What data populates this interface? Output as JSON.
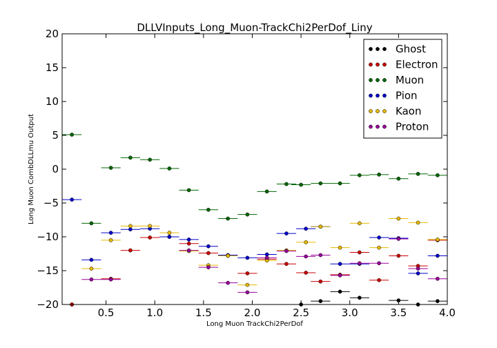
{
  "chart_data": {
    "type": "scatter",
    "title": "DLLVInputs_Long_Muon-TrackChi2PerDof_Liny",
    "xlabel": "Long Muon TrackChi2PerDof",
    "ylabel": "Long Muon CombDLLmu Output",
    "xlim": [
      0.05,
      4.0
    ],
    "ylim": [
      -20,
      20
    ],
    "xticks": [
      "0.5",
      "1.0",
      "1.5",
      "2.0",
      "2.5",
      "3.0",
      "3.5",
      "4.0"
    ],
    "xtick_values": [
      0.5,
      1.0,
      1.5,
      2.0,
      2.5,
      3.0,
      3.5,
      4.0
    ],
    "yticks": [
      "20",
      "15",
      "10",
      "5",
      "0",
      "−5",
      "−10",
      "−15",
      "−20"
    ],
    "ytick_values": [
      20,
      15,
      10,
      5,
      0,
      -5,
      -10,
      -15,
      -20
    ],
    "bin_half_width": 0.1,
    "legend_position": "upper right",
    "grid": false,
    "series": [
      {
        "name": "Ghost",
        "color": "#000000",
        "x": [
          0.15,
          2.5,
          2.7,
          2.9,
          3.1,
          3.5,
          3.7,
          3.9
        ],
        "y": [
          -20.0,
          -20.0,
          -19.5,
          -18.1,
          -19.0,
          -19.4,
          -20.0,
          -19.5
        ]
      },
      {
        "name": "Electron",
        "color": "#cc0000",
        "x": [
          0.15,
          0.55,
          0.75,
          0.95,
          1.15,
          1.35,
          1.55,
          1.75,
          1.95,
          2.15,
          2.35,
          2.55,
          2.7,
          2.9,
          3.1,
          3.3,
          3.5,
          3.7,
          3.9
        ],
        "y": [
          -20.0,
          -16.2,
          -12.0,
          -10.1,
          -10.0,
          -11.0,
          -12.4,
          -12.8,
          -15.4,
          -13.3,
          -14.0,
          -15.3,
          -16.6,
          -15.6,
          -12.3,
          -16.4,
          -12.8,
          -14.3,
          -10.5
        ]
      },
      {
        "name": "Muon",
        "color": "#006600",
        "x": [
          0.15,
          0.35,
          0.55,
          0.75,
          0.95,
          1.15,
          1.35,
          1.55,
          1.75,
          1.95,
          2.15,
          2.35,
          2.5,
          2.7,
          2.9,
          3.1,
          3.3,
          3.5,
          3.7,
          3.9
        ],
        "y": [
          5.1,
          -8.0,
          0.2,
          1.7,
          1.4,
          0.1,
          -3.1,
          -6.0,
          -7.3,
          -6.7,
          -3.3,
          -2.2,
          -2.3,
          -2.1,
          -2.1,
          -0.9,
          -0.8,
          -1.4,
          -0.7,
          -0.9
        ]
      },
      {
        "name": "Pion",
        "color": "#0000cc",
        "x": [
          0.15,
          0.35,
          0.55,
          0.75,
          0.95,
          1.15,
          1.35,
          1.55,
          1.75,
          1.95,
          2.15,
          2.35,
          2.55,
          2.7,
          2.9,
          3.1,
          3.3,
          3.5,
          3.7,
          3.9
        ],
        "y": [
          -4.5,
          -13.4,
          -9.4,
          -8.9,
          -8.8,
          -10.0,
          -10.4,
          -11.4,
          -12.7,
          -13.1,
          -12.6,
          -9.5,
          -8.8,
          -8.5,
          -14.0,
          -14.0,
          -10.1,
          -10.2,
          -15.4,
          -12.8
        ]
      },
      {
        "name": "Kaon",
        "color": "#e6b800",
        "x": [
          0.35,
          0.55,
          0.75,
          0.95,
          1.15,
          1.35,
          1.55,
          1.75,
          1.95,
          2.15,
          2.35,
          2.55,
          2.7,
          2.9,
          3.1,
          3.3,
          3.5,
          3.7,
          3.9
        ],
        "y": [
          -14.7,
          -10.5,
          -8.4,
          -8.4,
          -9.4,
          -12.1,
          -14.2,
          -12.8,
          -17.1,
          -13.5,
          -12.0,
          -10.8,
          -8.5,
          -11.6,
          -8.0,
          -11.6,
          -7.3,
          -7.9,
          -10.4
        ]
      },
      {
        "name": "Proton",
        "color": "#990099",
        "x": [
          0.35,
          0.55,
          1.35,
          1.55,
          1.75,
          1.95,
          2.15,
          2.35,
          2.55,
          2.7,
          2.9,
          3.1,
          3.3,
          3.5,
          3.7,
          3.9
        ],
        "y": [
          -16.3,
          -16.3,
          -12.0,
          -14.5,
          -16.8,
          -18.2,
          -13.1,
          -12.1,
          -12.9,
          -12.7,
          -15.7,
          -13.9,
          -13.9,
          -10.3,
          -14.7,
          -16.2
        ]
      }
    ]
  }
}
